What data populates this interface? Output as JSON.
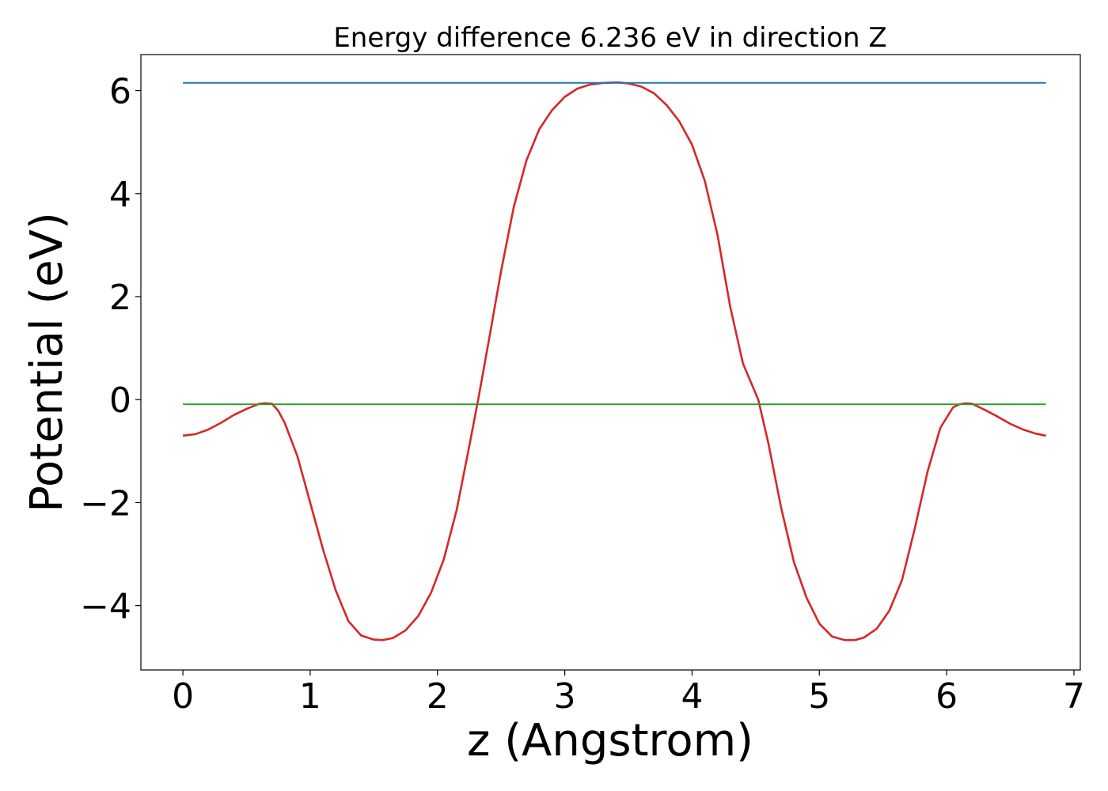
{
  "chart_data": {
    "type": "line",
    "title": "Energy difference 6.236 eV in direction Z",
    "xlabel": "z (Angstrom)",
    "ylabel": "Potential (eV)",
    "xlim": [
      -0.33,
      7.05
    ],
    "ylim": [
      -5.25,
      6.7
    ],
    "xticks": [
      0,
      1,
      2,
      3,
      4,
      5,
      6,
      7
    ],
    "yticks": [
      -4,
      -2,
      0,
      2,
      4,
      6
    ],
    "grid": false,
    "legend": "none",
    "series": [
      {
        "color": "#d62728",
        "x": [
          0,
          0.1,
          0.2,
          0.3,
          0.4,
          0.5,
          0.6,
          0.65,
          0.7,
          0.75,
          0.8,
          0.9,
          1.0,
          1.1,
          1.2,
          1.3,
          1.4,
          1.5,
          1.57,
          1.65,
          1.75,
          1.85,
          1.95,
          2.05,
          2.15,
          2.25,
          2.32,
          2.4,
          2.5,
          2.6,
          2.7,
          2.8,
          2.9,
          3.0,
          3.1,
          3.2,
          3.3,
          3.42,
          3.5,
          3.6,
          3.7,
          3.8,
          3.9,
          4.0,
          4.1,
          4.2,
          4.3,
          4.4,
          4.52,
          4.6,
          4.7,
          4.8,
          4.9,
          5.0,
          5.1,
          5.2,
          5.28,
          5.35,
          5.45,
          5.55,
          5.65,
          5.75,
          5.85,
          5.95,
          6.05,
          6.1,
          6.15,
          6.2,
          6.3,
          6.4,
          6.5,
          6.6,
          6.7,
          6.78
        ],
        "y": [
          -0.7,
          -0.67,
          -0.58,
          -0.45,
          -0.3,
          -0.18,
          -0.08,
          -0.07,
          -0.08,
          -0.22,
          -0.45,
          -1.1,
          -2.0,
          -2.9,
          -3.7,
          -4.3,
          -4.58,
          -4.66,
          -4.67,
          -4.63,
          -4.48,
          -4.2,
          -3.75,
          -3.1,
          -2.15,
          -0.9,
          0.0,
          1.1,
          2.5,
          3.75,
          4.65,
          5.25,
          5.62,
          5.88,
          6.04,
          6.12,
          6.15,
          6.16,
          6.14,
          6.08,
          5.95,
          5.72,
          5.4,
          4.95,
          4.25,
          3.2,
          1.8,
          0.7,
          0.0,
          -0.85,
          -2.1,
          -3.15,
          -3.85,
          -4.35,
          -4.6,
          -4.67,
          -4.67,
          -4.62,
          -4.45,
          -4.1,
          -3.5,
          -2.5,
          -1.4,
          -0.55,
          -0.15,
          -0.09,
          -0.07,
          -0.08,
          -0.2,
          -0.33,
          -0.47,
          -0.58,
          -0.66,
          -0.7
        ]
      },
      {
        "color": "#1f77b4",
        "x": [
          0,
          6.78
        ],
        "y": [
          6.15,
          6.15
        ]
      },
      {
        "color": "#2ca02c",
        "x": [
          0,
          6.78
        ],
        "y": [
          -0.09,
          -0.09
        ]
      }
    ]
  }
}
